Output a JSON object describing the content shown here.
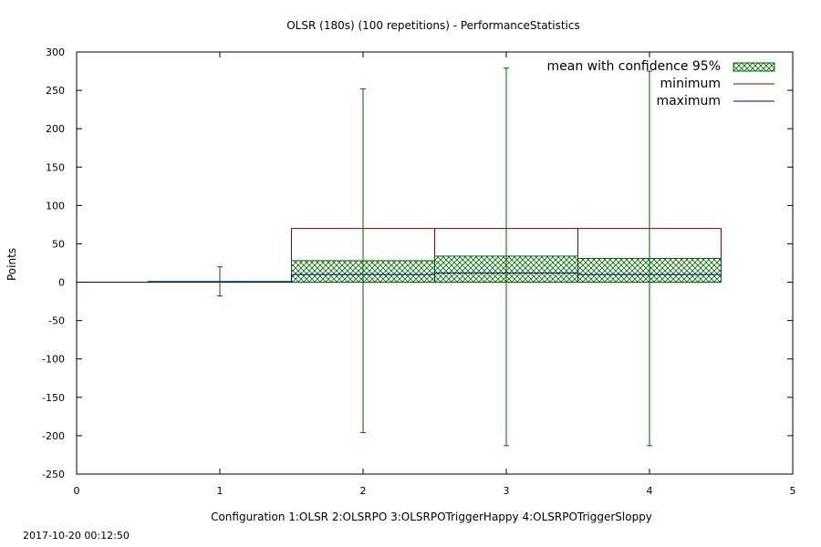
{
  "chart_data": {
    "type": "bar",
    "title": "OLSR (180s) (100 repetitions) - PerformanceStatistics",
    "xlabel": "Configuration  1:OLSR  2:OLSRPO  3:OLSRPOTriggerHappy  4:OLSRPOTriggerSloppy",
    "ylabel": "Points",
    "xlim": [
      0,
      5
    ],
    "ylim": [
      -250,
      300
    ],
    "x_ticks": [
      "0",
      "1",
      "2",
      "3",
      "4",
      "5"
    ],
    "y_ticks": [
      "300",
      "250",
      "200",
      "150",
      "100",
      "50",
      "0",
      "-50",
      "-100",
      "-150",
      "-200",
      "-250"
    ],
    "categories": [
      1,
      2,
      3,
      4
    ],
    "series": [
      {
        "name": "mean with confidence 95%",
        "type": "bar",
        "values": [
          1,
          28,
          34,
          31
        ],
        "color": "#006400"
      },
      {
        "name": "minimum",
        "type": "bar-outline",
        "values": [
          0,
          70,
          70,
          70
        ],
        "color": "#8b0000"
      },
      {
        "name": "maximum",
        "type": "line",
        "values": [
          0,
          10,
          12,
          10
        ],
        "color": "#000080"
      }
    ],
    "error_bars": [
      {
        "x": 1,
        "low": -18,
        "high": 20
      },
      {
        "x": 2,
        "low": -196,
        "high": 252
      },
      {
        "x": 3,
        "low": -213,
        "high": 279
      },
      {
        "x": 4,
        "low": -213,
        "high": 275
      }
    ],
    "legend_position": "top-right",
    "timestamp": "2017-10-20 00:12:50"
  }
}
